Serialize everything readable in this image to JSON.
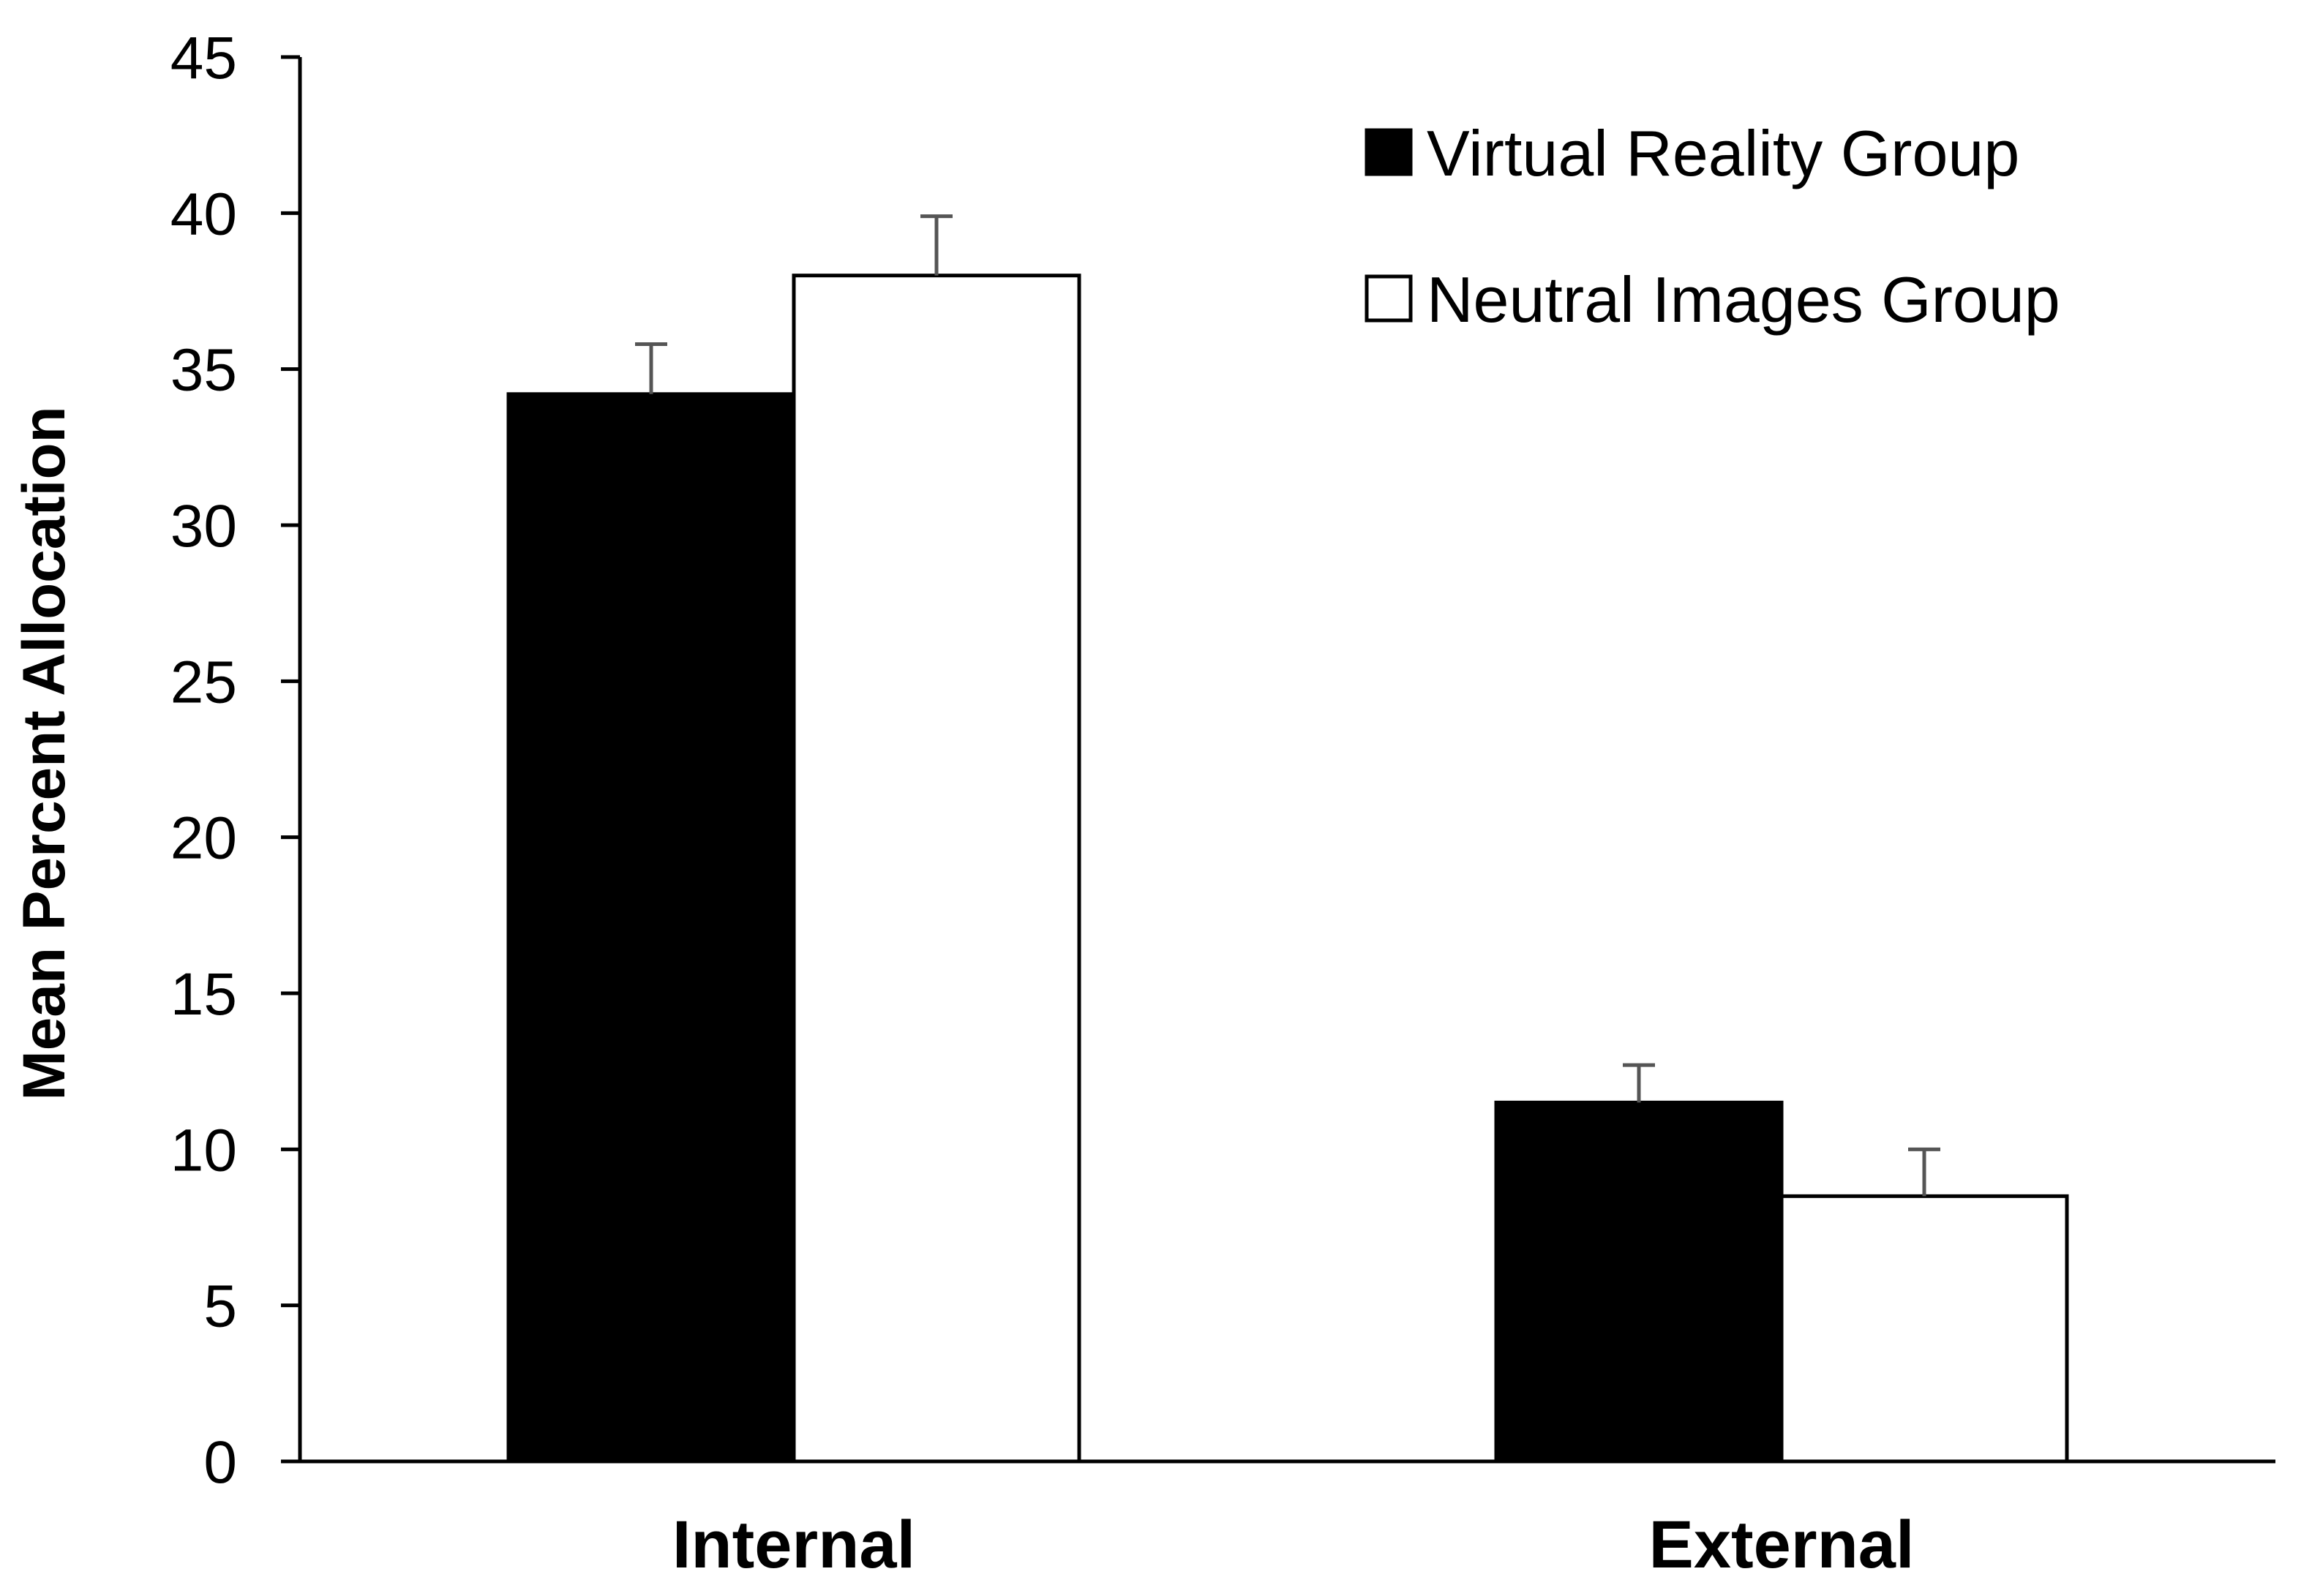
{
  "chart_data": {
    "type": "bar",
    "title": "",
    "xlabel": "",
    "ylabel": "Mean Percent Allocation",
    "ylim": [
      0,
      45
    ],
    "yticks": [
      0,
      5,
      10,
      15,
      20,
      25,
      30,
      35,
      40,
      45
    ],
    "grid": false,
    "legend_position": "top-right",
    "categories": [
      "Internal",
      "External"
    ],
    "series": [
      {
        "name": "Virtual Reality Group",
        "fill": "#000000",
        "values": [
          34.2,
          11.5
        ],
        "error": [
          1.6,
          1.2
        ]
      },
      {
        "name": "Neutral Images Group",
        "fill": "#ffffff",
        "values": [
          38.0,
          8.5
        ],
        "error": [
          1.9,
          1.5
        ]
      }
    ],
    "colors": {
      "axis": "#000000",
      "error_bar": "#555555"
    }
  }
}
